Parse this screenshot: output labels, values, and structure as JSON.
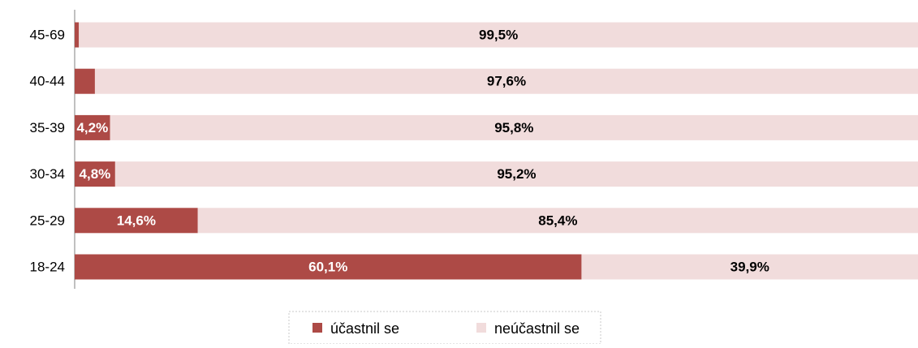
{
  "chart_data": {
    "type": "stacked-bar-horizontal",
    "categories": [
      "45-69",
      "40-44",
      "35-39",
      "30-34",
      "25-29",
      "18-24"
    ],
    "series": [
      {
        "name": "účastnil se",
        "color": "#ad4a46",
        "values": [
          0.5,
          2.4,
          4.2,
          4.8,
          14.6,
          60.1
        ],
        "value_labels": [
          null,
          null,
          "4,2%",
          "4,8%",
          "14,6%",
          "60,1%"
        ]
      },
      {
        "name": "neúčastnil se",
        "color": "#f1dcdc",
        "values": [
          99.5,
          97.6,
          95.8,
          95.2,
          85.4,
          39.9
        ],
        "value_labels": [
          "99,5%",
          "97,6%",
          "95,8%",
          "95,2%",
          "85,4%",
          "39,9%"
        ]
      }
    ],
    "xlim": [
      0,
      100
    ]
  }
}
